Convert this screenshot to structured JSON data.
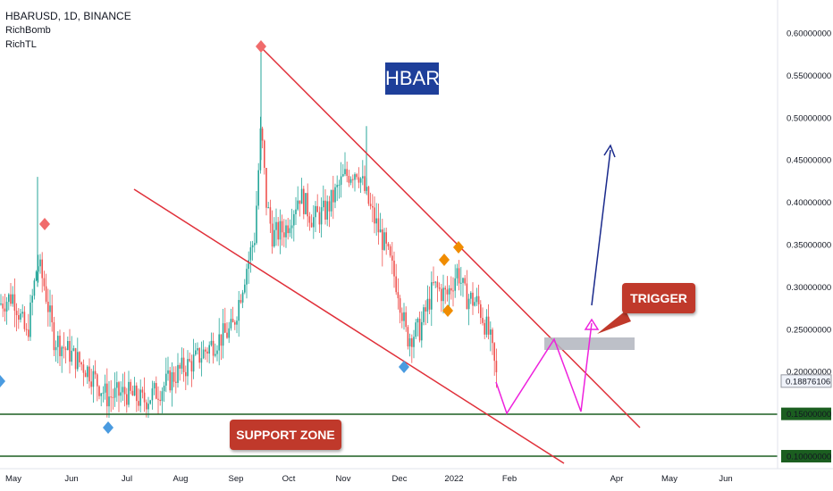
{
  "header": {
    "ticker": "HBARUSD, 1D, BINANCE",
    "indicators": [
      "RichBomb",
      "RichTL"
    ]
  },
  "annotations": {
    "title": "HBAR",
    "support_label": "SUPPORT ZONE",
    "trigger_label": "TRIGGER"
  },
  "colors": {
    "up": "#26a69a",
    "down": "#ef5350",
    "trendline": "#e0303a",
    "support_line": "#1b5e20",
    "projection_pink": "#ee22dd",
    "projection_blue": "#1a2a8c",
    "title_bg": "#1e3f9a",
    "callout_bg": "#c0392b"
  },
  "chart_data": {
    "type": "candlestick",
    "y_axis": {
      "ticks": [
        "0.60000000",
        "0.55000000",
        "0.50000000",
        "0.45000000",
        "0.40000000",
        "0.35000000",
        "0.30000000",
        "0.25000000",
        "0.20000000",
        "0.15000000",
        "0.10000000"
      ],
      "last_price": "0.18876106",
      "range": [
        0.09,
        0.63
      ]
    },
    "x_axis": {
      "ticks": [
        "May",
        "Jun",
        "Jul",
        "Aug",
        "Sep",
        "Oct",
        "Nov",
        "Dec",
        "2022",
        "Feb",
        "Apr",
        "May",
        "Jun"
      ]
    },
    "support_levels": [
      0.15,
      0.1
    ],
    "marker_colors": [
      "#f06b6b",
      "#f06b6b",
      "#4a9be0",
      "#4a9be0",
      "#f08c00"
    ]
  }
}
